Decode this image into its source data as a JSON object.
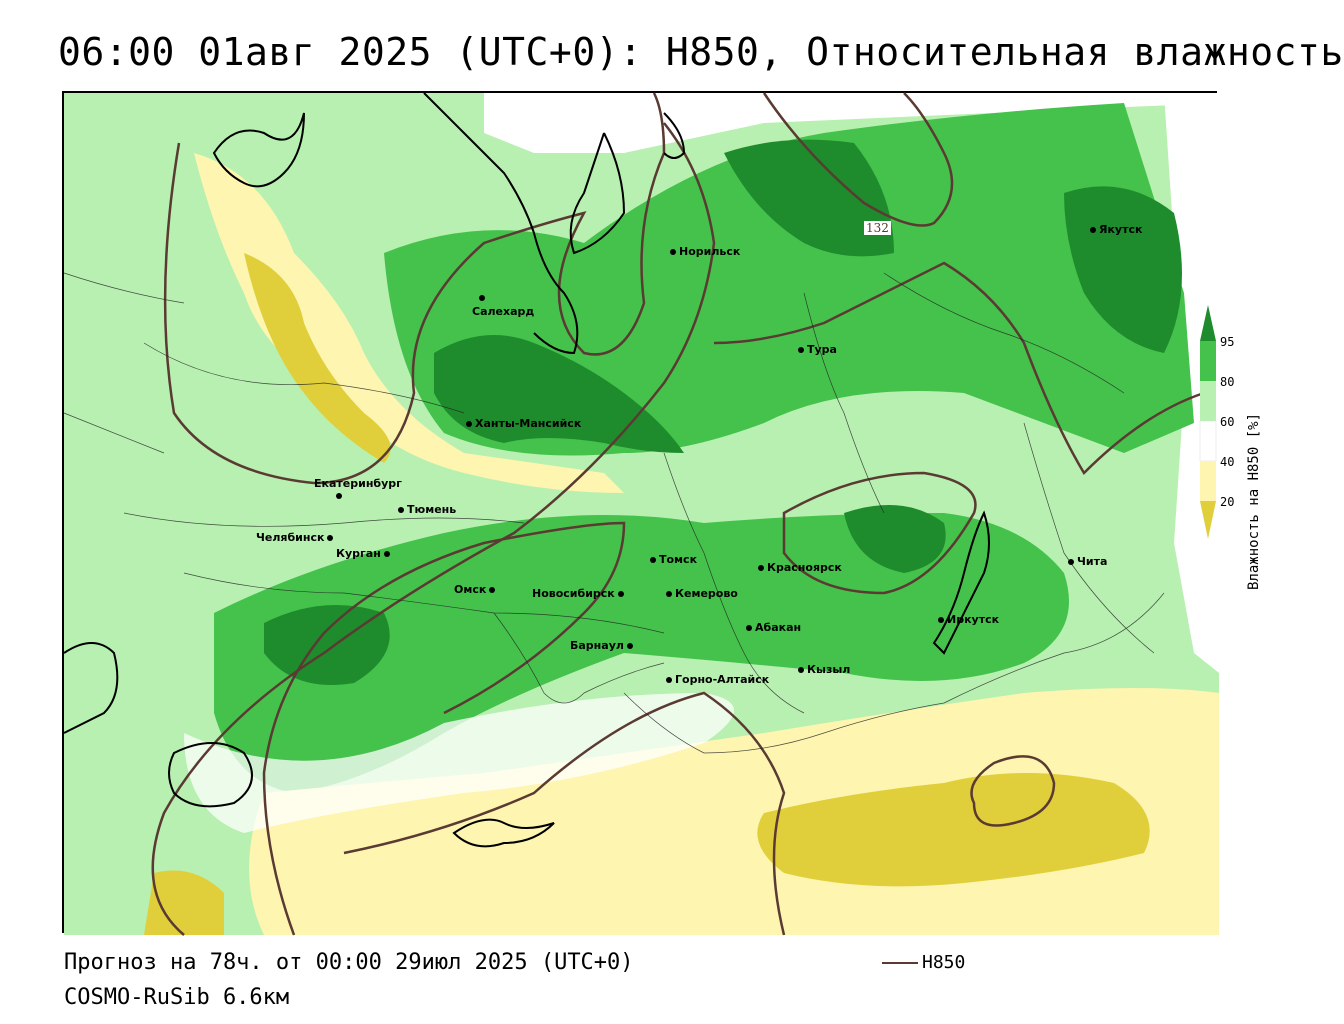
{
  "header": {
    "title": "06:00 01авг 2025 (UTC+0): H850, Относительная влажность"
  },
  "footer": {
    "forecast": "Прогноз на 78ч. от 00:00 29июл 2025 (UTC+0)",
    "model": "COSMO-RuSib 6.6км",
    "line_legend_label": "H850"
  },
  "legend": {
    "title": "Влажность на H850 [%]",
    "ticks": [
      "95",
      "80",
      "60",
      "40",
      "20"
    ],
    "colors": {
      "c95": "#1e8c2c",
      "c80": "#44c24c",
      "c60": "#b7f0b0",
      "c50": "#ffffff",
      "c40": "#fdf5b0",
      "c20": "#e0cf3a"
    }
  },
  "map": {
    "contour_label": "132",
    "contour_color": "#5a3a32",
    "cities": [
      {
        "name": "Норильск"
      },
      {
        "name": "Салехард"
      },
      {
        "name": "Якутск"
      },
      {
        "name": "Тура"
      },
      {
        "name": "Ханты-Мансийск"
      },
      {
        "name": "Екатеринбург"
      },
      {
        "name": "Тюмень"
      },
      {
        "name": "Челябинск"
      },
      {
        "name": "Курган"
      },
      {
        "name": "Омск"
      },
      {
        "name": "Новосибирск"
      },
      {
        "name": "Томск"
      },
      {
        "name": "Кемерово"
      },
      {
        "name": "Красноярск"
      },
      {
        "name": "Абакан"
      },
      {
        "name": "Барнаул"
      },
      {
        "name": "Горно-Алтайск"
      },
      {
        "name": "Кызыл"
      },
      {
        "name": "Иркутск"
      },
      {
        "name": "Чита"
      }
    ]
  }
}
